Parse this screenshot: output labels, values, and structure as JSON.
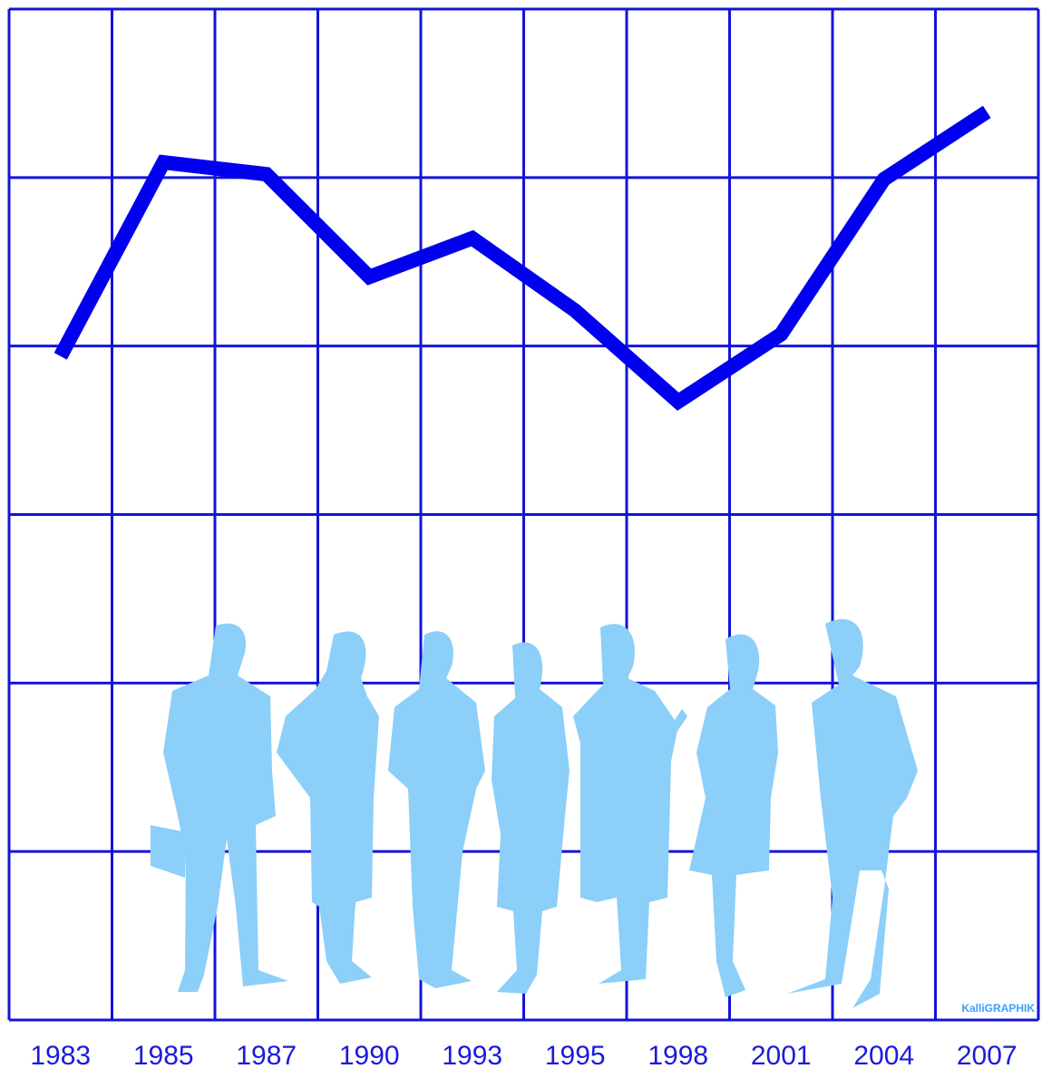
{
  "chart_data": {
    "type": "line",
    "categories": [
      "1983",
      "1985",
      "1987",
      "1990",
      "1993",
      "1995",
      "1998",
      "2001",
      "2004",
      "2007"
    ],
    "series": [
      {
        "color": "#0000ee",
        "values": [
          3.94,
          5.09,
          5.02,
          4.41,
          4.64,
          4.21,
          3.67,
          4.07,
          4.99,
          5.39
        ]
      }
    ],
    "ylim": [
      0,
      6
    ],
    "yticks": [
      0,
      1,
      2,
      3,
      4,
      5,
      6
    ],
    "grid": true,
    "grid_color": "#1414d8"
  },
  "watermark": "KalliGRAPHIK"
}
